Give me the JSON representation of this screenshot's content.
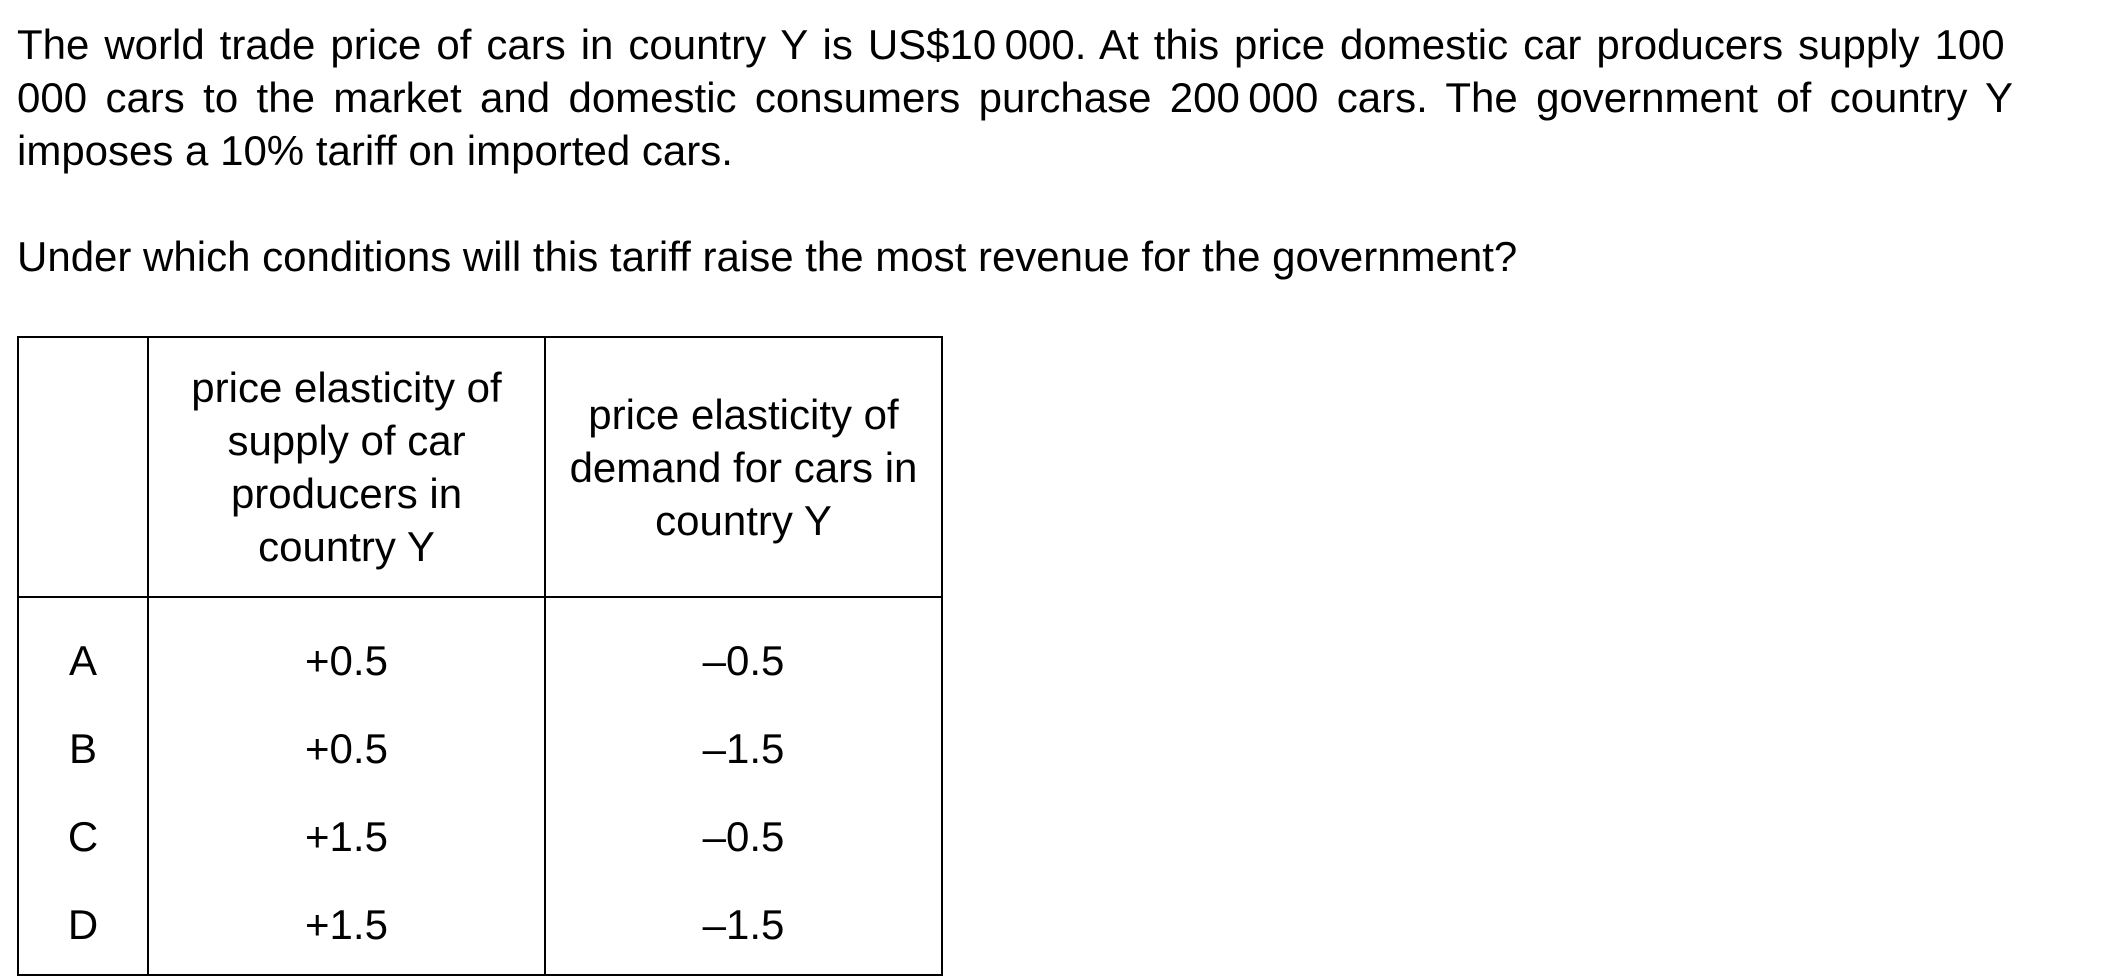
{
  "stem": "The world trade price of cars in country Y is US$10 000. At this price domestic car producers supply 100 000 cars to the market and domestic consumers purchase 200 000 cars. The government of country Y imposes a 10% tariff on imported cars.",
  "question": "Under which conditions will this tariff raise the most revenue for the government?",
  "table": {
    "header": {
      "blank": "",
      "col1": "price elasticity of supply of car producers in country Y",
      "col2": "price elasticity of demand for cars in country Y"
    },
    "rows": [
      {
        "letter": "A",
        "supply": "+0.5",
        "demand": "–0.5"
      },
      {
        "letter": "B",
        "supply": "+0.5",
        "demand": "–1.5"
      },
      {
        "letter": "C",
        "supply": "+1.5",
        "demand": "–0.5"
      },
      {
        "letter": "D",
        "supply": "+1.5",
        "demand": "–1.5"
      }
    ]
  }
}
